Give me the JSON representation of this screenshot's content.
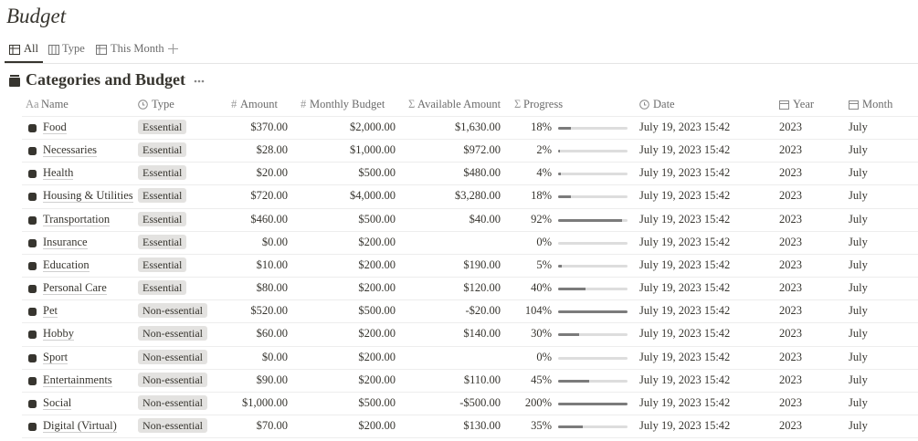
{
  "page": {
    "title": "Budget",
    "tabs": [
      "All",
      "Type",
      "This Month"
    ],
    "database_title": "Categories and Budget",
    "columns": [
      {
        "glyph": "Aa",
        "label": "Name"
      },
      {
        "label": "Type"
      },
      {
        "glyph": "#",
        "label": "Amount"
      },
      {
        "glyph": "#",
        "label": "Monthly Budget"
      },
      {
        "glyph": "Σ",
        "label": "Available Amount"
      },
      {
        "glyph": "Σ",
        "label": "Progress"
      },
      {
        "label": "Date"
      },
      {
        "label": "Year"
      },
      {
        "label": "Month"
      }
    ],
    "rows": [
      {
        "name": "Food",
        "type": "Essential",
        "amount": "$370.00",
        "monthly_budget": "$2,000.00",
        "available": "$1,630.00",
        "progress": {
          "value": 18,
          "label": "18%"
        },
        "date": "July 19, 2023 15:42",
        "year": "2023",
        "month": "July"
      },
      {
        "name": "Necessaries",
        "type": "Essential",
        "amount": "$28.00",
        "monthly_budget": "$1,000.00",
        "available": "$972.00",
        "progress": {
          "value": 2,
          "label": "2%"
        },
        "date": "July 19, 2023 15:42",
        "year": "2023",
        "month": "July"
      },
      {
        "name": "Health",
        "type": "Essential",
        "amount": "$20.00",
        "monthly_budget": "$500.00",
        "available": "$480.00",
        "progress": {
          "value": 4,
          "label": "4%"
        },
        "date": "July 19, 2023 15:42",
        "year": "2023",
        "month": "July"
      },
      {
        "name": "Housing & Utilities",
        "type": "Essential",
        "amount": "$720.00",
        "monthly_budget": "$4,000.00",
        "available": "$3,280.00",
        "progress": {
          "value": 18,
          "label": "18%"
        },
        "date": "July 19, 2023 15:42",
        "year": "2023",
        "month": "July"
      },
      {
        "name": "Transportation",
        "type": "Essential",
        "amount": "$460.00",
        "monthly_budget": "$500.00",
        "available": "$40.00",
        "progress": {
          "value": 92,
          "label": "92%"
        },
        "date": "July 19, 2023 15:42",
        "year": "2023",
        "month": "July"
      },
      {
        "name": "Insurance",
        "type": "Essential",
        "amount": "$0.00",
        "monthly_budget": "$200.00",
        "available": null,
        "progress": {
          "value": 0,
          "label": "0%"
        },
        "date": "July 19, 2023 15:42",
        "year": "2023",
        "month": "July"
      },
      {
        "name": "Education",
        "type": "Essential",
        "amount": "$10.00",
        "monthly_budget": "$200.00",
        "available": "$190.00",
        "progress": {
          "value": 5,
          "label": "5%"
        },
        "date": "July 19, 2023 15:42",
        "year": "2023",
        "month": "July"
      },
      {
        "name": "Personal Care",
        "type": "Essential",
        "amount": "$80.00",
        "monthly_budget": "$200.00",
        "available": "$120.00",
        "progress": {
          "value": 40,
          "label": "40%"
        },
        "date": "July 19, 2023 15:42",
        "year": "2023",
        "month": "July"
      },
      {
        "name": "Pet",
        "type": "Non-essential",
        "amount": "$520.00",
        "monthly_budget": "$500.00",
        "available": "-$20.00",
        "progress": {
          "value": 104,
          "label": "104%"
        },
        "date": "July 19, 2023 15:42",
        "year": "2023",
        "month": "July"
      },
      {
        "name": "Hobby",
        "type": "Non-essential",
        "amount": "$60.00",
        "monthly_budget": "$200.00",
        "available": "$140.00",
        "progress": {
          "value": 30,
          "label": "30%"
        },
        "date": "July 19, 2023 15:42",
        "year": "2023",
        "month": "July"
      },
      {
        "name": "Sport",
        "type": "Non-essential",
        "amount": "$0.00",
        "monthly_budget": "$200.00",
        "available": null,
        "progress": {
          "value": 0,
          "label": "0%"
        },
        "date": "July 19, 2023 15:42",
        "year": "2023",
        "month": "July"
      },
      {
        "name": "Entertainments",
        "type": "Non-essential",
        "amount": "$90.00",
        "monthly_budget": "$200.00",
        "available": "$110.00",
        "progress": {
          "value": 45,
          "label": "45%"
        },
        "date": "July 19, 2023 15:42",
        "year": "2023",
        "month": "July"
      },
      {
        "name": "Social",
        "type": "Non-essential",
        "amount": "$1,000.00",
        "monthly_budget": "$500.00",
        "available": "-$500.00",
        "progress": {
          "value": 200,
          "label": "200%"
        },
        "date": "July 19, 2023 15:42",
        "year": "2023",
        "month": "July"
      },
      {
        "name": "Digital (Virtual)",
        "type": "Non-essential",
        "amount": "$70.00",
        "monthly_budget": "$200.00",
        "available": "$130.00",
        "progress": {
          "value": 35,
          "label": "35%"
        },
        "date": "July 19, 2023 15:42",
        "year": "2023",
        "month": "July"
      }
    ]
  }
}
